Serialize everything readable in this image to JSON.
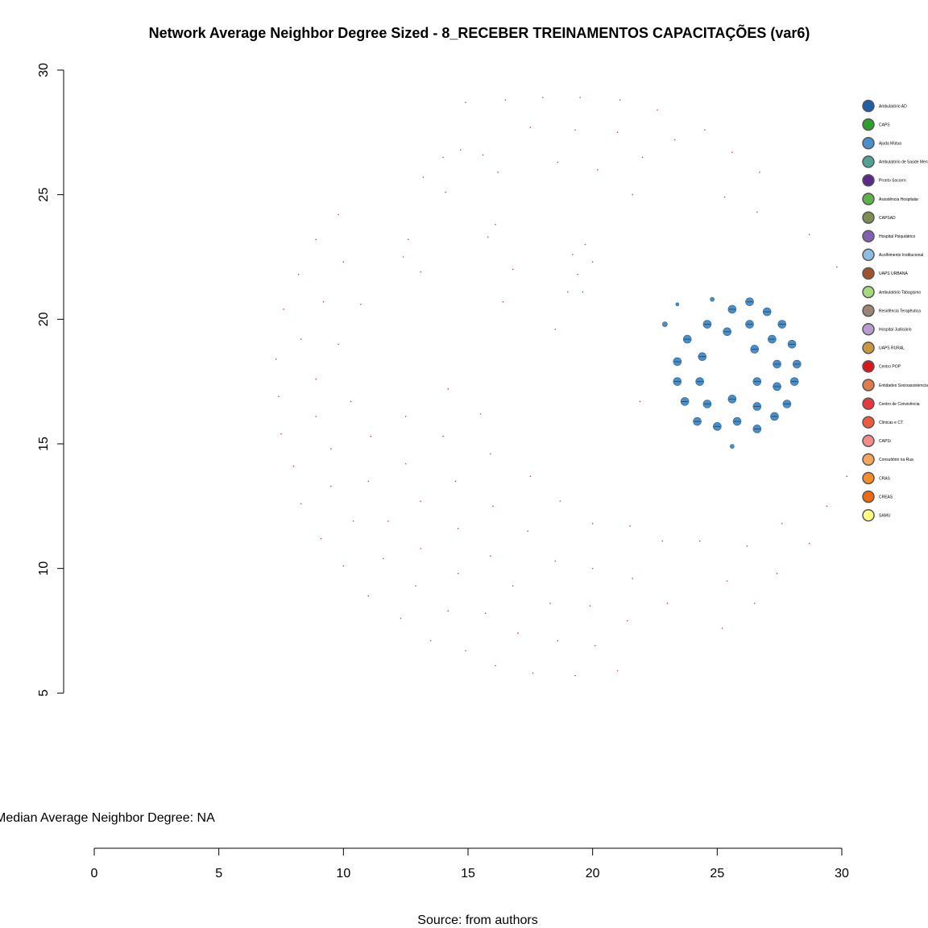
{
  "chart_data": {
    "type": "scatter",
    "title": "Network Average Neighbor Degree Sized - 8_RECEBER TREINAMENTOS CAPACITAÇÕES (var6)",
    "xlabel": "",
    "ylabel": "",
    "xlim": [
      0,
      30
    ],
    "ylim": [
      0,
      30
    ],
    "x_ticks": [
      "0",
      "5",
      "10",
      "15",
      "20",
      "25",
      "30"
    ],
    "y_ticks": [
      "5",
      "10",
      "15",
      "20",
      "25",
      "30"
    ],
    "grid": false,
    "legend_position": "right",
    "annotation": "Median Average Neighbor Degree: NA",
    "caption": "Source: from authors",
    "legend": [
      {
        "label": "Ambulatório AD",
        "color": "#1F5FA8"
      },
      {
        "label": "CAPS",
        "color": "#2CA02C"
      },
      {
        "label": "Ajuda Mútua",
        "color": "#4A8FC8"
      },
      {
        "label": "Ambulatório de Saúde Mental",
        "color": "#4FA394"
      },
      {
        "label": "Pronto Socorro",
        "color": "#5B2A86"
      },
      {
        "label": "Assistência Hospitalar",
        "color": "#5DB349"
      },
      {
        "label": "CAPSAD",
        "color": "#7E8C55"
      },
      {
        "label": "Hospital Psiquiátrico",
        "color": "#8160B0"
      },
      {
        "label": "Acolhimento Institucional",
        "color": "#8FBFE0"
      },
      {
        "label": "UAPS URBANA",
        "color": "#A0522D"
      },
      {
        "label": "Ambulatório Tabagismo",
        "color": "#A6DA7E"
      },
      {
        "label": "Residência Terapêutica",
        "color": "#9C8478"
      },
      {
        "label": "Hospital Judiciário",
        "color": "#B79CCF"
      },
      {
        "label": "UAPS RURAL",
        "color": "#C9973F"
      },
      {
        "label": "Centro POP",
        "color": "#D7191C"
      },
      {
        "label": "Entidades Socioassistenciais",
        "color": "#E07B4A"
      },
      {
        "label": "Centro de Convivência",
        "color": "#E8383D"
      },
      {
        "label": "Clínicas e CT",
        "color": "#EE5A3B"
      },
      {
        "label": "CAPSi",
        "color": "#F58A8A"
      },
      {
        "label": "Consultório na Rua",
        "color": "#F6A55F"
      },
      {
        "label": "CRAS",
        "color": "#F78C2A"
      },
      {
        "label": "CREAS",
        "color": "#F26A0F"
      },
      {
        "label": "SAMU",
        "color": "#FFFF80"
      }
    ],
    "cluster_points": [
      {
        "x": 26.3,
        "y": 20.7,
        "r": 5
      },
      {
        "x": 25.6,
        "y": 20.4,
        "r": 5
      },
      {
        "x": 27.0,
        "y": 20.3,
        "r": 5
      },
      {
        "x": 24.6,
        "y": 19.8,
        "r": 5
      },
      {
        "x": 26.3,
        "y": 19.8,
        "r": 5
      },
      {
        "x": 27.6,
        "y": 19.8,
        "r": 5
      },
      {
        "x": 25.4,
        "y": 19.5,
        "r": 5
      },
      {
        "x": 23.8,
        "y": 19.2,
        "r": 5
      },
      {
        "x": 27.2,
        "y": 19.2,
        "r": 5
      },
      {
        "x": 28.0,
        "y": 19.0,
        "r": 5
      },
      {
        "x": 26.5,
        "y": 18.8,
        "r": 5
      },
      {
        "x": 24.4,
        "y": 18.5,
        "r": 5
      },
      {
        "x": 23.4,
        "y": 18.3,
        "r": 5
      },
      {
        "x": 27.4,
        "y": 18.2,
        "r": 5
      },
      {
        "x": 28.2,
        "y": 18.2,
        "r": 5
      },
      {
        "x": 23.4,
        "y": 17.5,
        "r": 5
      },
      {
        "x": 24.3,
        "y": 17.5,
        "r": 5
      },
      {
        "x": 26.6,
        "y": 17.5,
        "r": 5
      },
      {
        "x": 28.1,
        "y": 17.5,
        "r": 5
      },
      {
        "x": 27.4,
        "y": 17.3,
        "r": 5
      },
      {
        "x": 25.6,
        "y": 16.8,
        "r": 5
      },
      {
        "x": 23.7,
        "y": 16.7,
        "r": 5
      },
      {
        "x": 24.6,
        "y": 16.6,
        "r": 5
      },
      {
        "x": 27.8,
        "y": 16.6,
        "r": 5
      },
      {
        "x": 26.6,
        "y": 16.5,
        "r": 5
      },
      {
        "x": 27.3,
        "y": 16.1,
        "r": 5
      },
      {
        "x": 24.2,
        "y": 15.9,
        "r": 5
      },
      {
        "x": 25.8,
        "y": 15.9,
        "r": 5
      },
      {
        "x": 25.0,
        "y": 15.7,
        "r": 5
      },
      {
        "x": 26.6,
        "y": 15.6,
        "r": 5
      },
      {
        "x": 22.9,
        "y": 19.8,
        "r": 3
      },
      {
        "x": 23.4,
        "y": 20.6,
        "r": 2
      },
      {
        "x": 24.8,
        "y": 20.8,
        "r": 2.5
      },
      {
        "x": 25.6,
        "y": 14.9,
        "r": 2.5
      }
    ],
    "ring_points": [
      {
        "x": 14.9,
        "y": 28.7
      },
      {
        "x": 16.5,
        "y": 28.8
      },
      {
        "x": 18.0,
        "y": 28.9
      },
      {
        "x": 19.5,
        "y": 28.9
      },
      {
        "x": 21.1,
        "y": 28.8
      },
      {
        "x": 22.6,
        "y": 28.4
      },
      {
        "x": 17.5,
        "y": 27.7
      },
      {
        "x": 19.3,
        "y": 27.6
      },
      {
        "x": 21.0,
        "y": 27.5
      },
      {
        "x": 23.3,
        "y": 27.2
      },
      {
        "x": 24.5,
        "y": 27.6
      },
      {
        "x": 14.7,
        "y": 26.8
      },
      {
        "x": 15.6,
        "y": 26.6
      },
      {
        "x": 14.0,
        "y": 26.5
      },
      {
        "x": 22.0,
        "y": 26.5
      },
      {
        "x": 25.6,
        "y": 26.7
      },
      {
        "x": 18.6,
        "y": 26.3
      },
      {
        "x": 16.2,
        "y": 25.9
      },
      {
        "x": 20.2,
        "y": 26.0
      },
      {
        "x": 13.2,
        "y": 25.7
      },
      {
        "x": 26.7,
        "y": 25.9
      },
      {
        "x": 14.1,
        "y": 25.1
      },
      {
        "x": 21.6,
        "y": 25.0
      },
      {
        "x": 25.3,
        "y": 24.9
      },
      {
        "x": 26.6,
        "y": 24.3
      },
      {
        "x": 9.8,
        "y": 24.2
      },
      {
        "x": 16.1,
        "y": 23.8
      },
      {
        "x": 8.9,
        "y": 23.2
      },
      {
        "x": 12.6,
        "y": 23.2
      },
      {
        "x": 15.8,
        "y": 23.3
      },
      {
        "x": 28.7,
        "y": 23.4
      },
      {
        "x": 19.7,
        "y": 23.0
      },
      {
        "x": 12.4,
        "y": 22.5
      },
      {
        "x": 19.2,
        "y": 22.6
      },
      {
        "x": 20.0,
        "y": 22.3
      },
      {
        "x": 10.0,
        "y": 22.3
      },
      {
        "x": 13.1,
        "y": 21.9
      },
      {
        "x": 19.4,
        "y": 21.8
      },
      {
        "x": 8.2,
        "y": 21.8
      },
      {
        "x": 29.8,
        "y": 22.1
      },
      {
        "x": 16.8,
        "y": 22.0
      },
      {
        "x": 19.0,
        "y": 21.1
      },
      {
        "x": 19.6,
        "y": 21.1
      },
      {
        "x": 9.2,
        "y": 20.7
      },
      {
        "x": 10.7,
        "y": 20.6
      },
      {
        "x": 16.4,
        "y": 20.7
      },
      {
        "x": 7.6,
        "y": 20.4
      },
      {
        "x": 18.5,
        "y": 19.6
      },
      {
        "x": 8.3,
        "y": 19.2
      },
      {
        "x": 9.8,
        "y": 19.0
      },
      {
        "x": 7.3,
        "y": 18.4
      },
      {
        "x": 8.9,
        "y": 17.6
      },
      {
        "x": 14.2,
        "y": 17.2
      },
      {
        "x": 7.4,
        "y": 16.9
      },
      {
        "x": 10.3,
        "y": 16.7
      },
      {
        "x": 21.9,
        "y": 16.7
      },
      {
        "x": 8.9,
        "y": 16.1
      },
      {
        "x": 12.5,
        "y": 16.1
      },
      {
        "x": 15.5,
        "y": 16.2
      },
      {
        "x": 7.5,
        "y": 15.4
      },
      {
        "x": 11.1,
        "y": 15.3
      },
      {
        "x": 14.0,
        "y": 15.3
      },
      {
        "x": 9.5,
        "y": 14.8
      },
      {
        "x": 15.9,
        "y": 14.6
      },
      {
        "x": 8.0,
        "y": 14.1
      },
      {
        "x": 12.5,
        "y": 14.2
      },
      {
        "x": 17.5,
        "y": 13.7
      },
      {
        "x": 11.0,
        "y": 13.5
      },
      {
        "x": 14.5,
        "y": 13.5
      },
      {
        "x": 9.5,
        "y": 13.3
      },
      {
        "x": 30.2,
        "y": 13.7
      },
      {
        "x": 13.1,
        "y": 12.7
      },
      {
        "x": 18.7,
        "y": 12.7
      },
      {
        "x": 8.3,
        "y": 12.6
      },
      {
        "x": 16.0,
        "y": 12.5
      },
      {
        "x": 29.4,
        "y": 12.5
      },
      {
        "x": 10.4,
        "y": 11.9
      },
      {
        "x": 11.8,
        "y": 11.9
      },
      {
        "x": 20.0,
        "y": 11.8
      },
      {
        "x": 21.5,
        "y": 11.7
      },
      {
        "x": 27.6,
        "y": 11.8
      },
      {
        "x": 14.6,
        "y": 11.6
      },
      {
        "x": 17.4,
        "y": 11.5
      },
      {
        "x": 9.1,
        "y": 11.2
      },
      {
        "x": 22.8,
        "y": 11.1
      },
      {
        "x": 24.3,
        "y": 11.1
      },
      {
        "x": 26.2,
        "y": 10.9
      },
      {
        "x": 28.7,
        "y": 11.0
      },
      {
        "x": 13.1,
        "y": 10.8
      },
      {
        "x": 15.9,
        "y": 10.5
      },
      {
        "x": 11.6,
        "y": 10.4
      },
      {
        "x": 18.5,
        "y": 10.3
      },
      {
        "x": 10.0,
        "y": 10.1
      },
      {
        "x": 20.0,
        "y": 10.0
      },
      {
        "x": 14.6,
        "y": 9.8
      },
      {
        "x": 27.4,
        "y": 9.8
      },
      {
        "x": 21.6,
        "y": 9.6
      },
      {
        "x": 25.4,
        "y": 9.5
      },
      {
        "x": 12.9,
        "y": 9.3
      },
      {
        "x": 16.8,
        "y": 9.3
      },
      {
        "x": 11.0,
        "y": 8.9
      },
      {
        "x": 18.3,
        "y": 8.6
      },
      {
        "x": 23.0,
        "y": 8.6
      },
      {
        "x": 26.5,
        "y": 8.6
      },
      {
        "x": 19.9,
        "y": 8.5
      },
      {
        "x": 14.2,
        "y": 8.3
      },
      {
        "x": 15.7,
        "y": 8.2
      },
      {
        "x": 12.3,
        "y": 8.0
      },
      {
        "x": 21.4,
        "y": 7.9
      },
      {
        "x": 25.2,
        "y": 7.6
      },
      {
        "x": 17.0,
        "y": 7.4
      },
      {
        "x": 13.5,
        "y": 7.1
      },
      {
        "x": 18.6,
        "y": 7.1
      },
      {
        "x": 20.1,
        "y": 6.9
      },
      {
        "x": 14.9,
        "y": 6.7
      },
      {
        "x": 16.1,
        "y": 6.1
      },
      {
        "x": 21.0,
        "y": 5.9
      },
      {
        "x": 17.6,
        "y": 5.8
      },
      {
        "x": 19.3,
        "y": 5.7
      }
    ]
  }
}
